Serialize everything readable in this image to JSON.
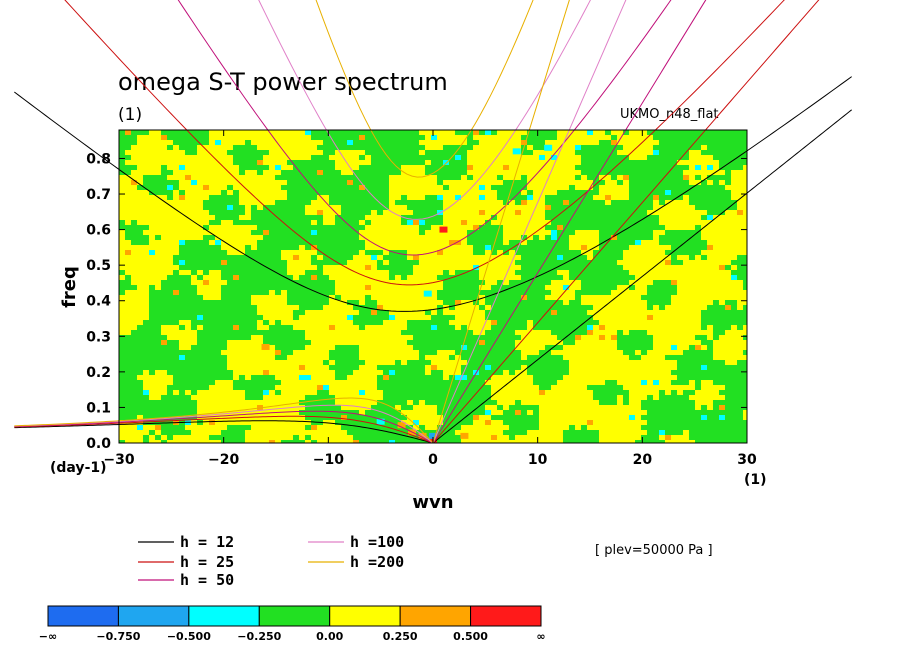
{
  "chart_data": {
    "type": "heatmap",
    "title": "omega S-T power spectrum",
    "subtitle": "(1)",
    "dataset_label": "UKMO_n48_flat",
    "xlabel": "wvn",
    "ylabel": "freq",
    "x_unit_label": "(1)",
    "y_unit_label": "(day-1)",
    "xlim": [
      -30,
      30
    ],
    "ylim": [
      0,
      0.88
    ],
    "x_ticks": [
      -30,
      -20,
      -10,
      0,
      10,
      20,
      30
    ],
    "x_tick_labels": [
      "−30",
      "−20",
      "−10",
      "0",
      "10",
      "20",
      "30"
    ],
    "y_ticks": [
      0,
      0.1,
      0.2,
      0.3,
      0.4,
      0.5,
      0.6,
      0.7,
      0.8
    ],
    "y_tick_labels": [
      "0.0",
      "0.1",
      "0.2",
      "0.3",
      "0.4",
      "0.5",
      "0.6",
      "0.7",
      "0.8"
    ],
    "level_info": "[ plev=50000 Pa ]",
    "colorbar": {
      "boundaries": [
        "−∞",
        "−0.750",
        "−0.500",
        "−0.250",
        "0.00",
        "0.250",
        "0.500",
        "∞"
      ],
      "colors": [
        "#1e6cf0",
        "#1fa6f0",
        "#00ffff",
        "#22e022",
        "#ffff00",
        "#ffa500",
        "#ff1a1a"
      ]
    },
    "field_description": "Mostly alternating green (-0.25 to 0) and yellow (0 to 0.25) patches, with scattered orange, cyan and red spots concentrated near wvn 0, freq 0.",
    "dispersion_curves": [
      {
        "name": "h = 12",
        "equivalent_depth": 12,
        "color": "#000000"
      },
      {
        "name": "h = 25",
        "equivalent_depth": 25,
        "color": "#cc1010"
      },
      {
        "name": "h = 50",
        "equivalent_depth": 50,
        "color": "#c0107a"
      },
      {
        "name": "h =100",
        "equivalent_depth": 100,
        "color": "#e080c8"
      },
      {
        "name": "h =200",
        "equivalent_depth": 200,
        "color": "#e8b000"
      }
    ]
  }
}
